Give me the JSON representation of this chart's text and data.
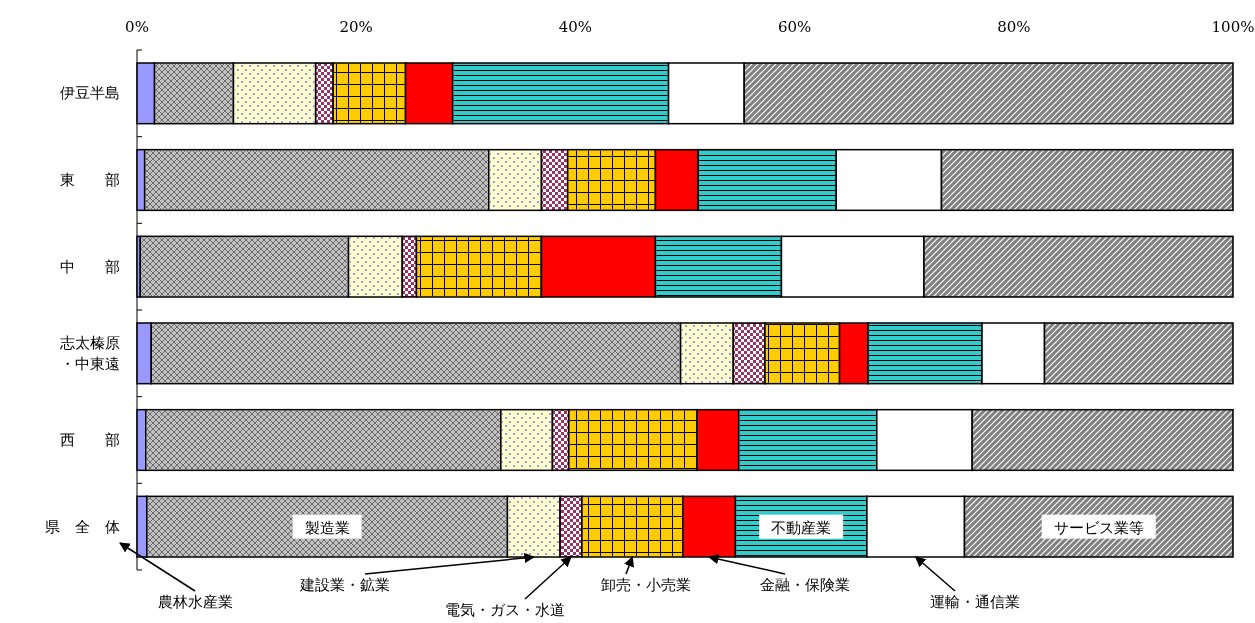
{
  "chart_data": {
    "type": "bar",
    "orientation": "horizontal",
    "stacked": true,
    "categories": [
      "伊豆半島",
      "東　　部",
      "中　　部",
      "志太榛原・中東遠",
      "西　　部",
      "県　全　体"
    ],
    "xlim": [
      0,
      100
    ],
    "legend": "bottom",
    "xticks": [
      {
        "value": 0,
        "label": "0%"
      },
      {
        "value": 20,
        "label": "20%"
      },
      {
        "value": 40,
        "label": "40%"
      },
      {
        "value": 60,
        "label": "60%"
      },
      {
        "value": 80,
        "label": "80%"
      },
      {
        "value": 100,
        "label": "100%"
      }
    ],
    "series": [
      {
        "name": "農林水産業",
        "color": "#9999ff",
        "values": [
          1.6,
          0.7,
          0.3,
          1.3,
          0.8,
          0.9
        ]
      },
      {
        "name": "製造業",
        "color": "#c0c0c0",
        "values": [
          7.2,
          31.4,
          19.0,
          48.3,
          32.4,
          32.9
        ]
      },
      {
        "name": "建設業・鉱業",
        "color": "#ffffcc",
        "values": [
          7.5,
          4.8,
          4.9,
          4.8,
          4.7,
          4.8
        ]
      },
      {
        "name": "電気・ガス・水道",
        "color": "#993366",
        "values": [
          1.6,
          2.4,
          1.3,
          2.9,
          1.5,
          2.0
        ]
      },
      {
        "name": "卸売・小売業",
        "color": "#ffcc00",
        "values": [
          6.6,
          8.0,
          11.4,
          6.8,
          11.7,
          9.2
        ]
      },
      {
        "name": "金融・保険業",
        "color": "#ff0000",
        "values": [
          4.3,
          3.9,
          10.4,
          2.6,
          3.8,
          4.8
        ]
      },
      {
        "name": "不動産業",
        "color": "#33cccc",
        "values": [
          19.7,
          12.6,
          11.5,
          10.4,
          12.6,
          12.0
        ]
      },
      {
        "name": "運輸・通信業",
        "color": "#ffffff",
        "values": [
          6.9,
          9.6,
          13.0,
          5.7,
          8.7,
          8.9
        ]
      },
      {
        "name": "サービス業等",
        "color": "#808080",
        "values": [
          44.6,
          26.6,
          28.2,
          17.2,
          23.8,
          24.5
        ]
      }
    ]
  }
}
